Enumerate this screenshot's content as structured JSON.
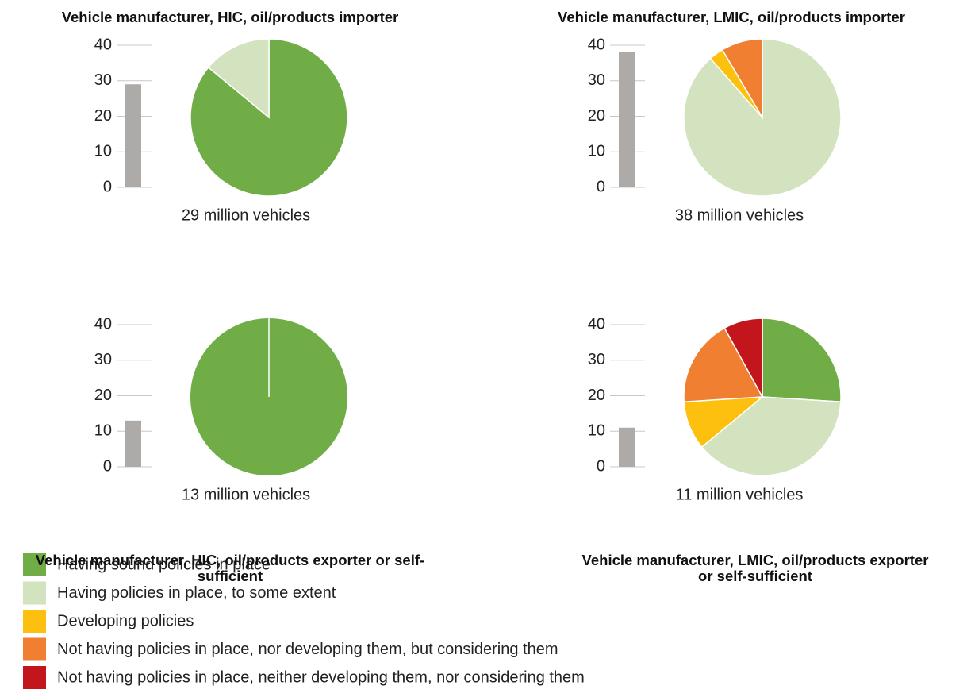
{
  "chart_data": [
    {
      "type": "bar_pie",
      "title": "Vehicle manufacturer, HIC, oil/products importer",
      "ylim": [
        0,
        40
      ],
      "yticks": [
        0,
        10,
        20,
        30,
        40
      ],
      "bar": {
        "values": [
          29
        ],
        "value_labels": [
          "29 million vehicles"
        ],
        "color": "#aeaaa8"
      },
      "pie": {
        "values": [
          86,
          14,
          0,
          0,
          0
        ]
      }
    },
    {
      "type": "bar_pie",
      "title": "Vehicle manufacturer, LMIC, oil/products importer",
      "ylim": [
        0,
        40
      ],
      "yticks": [
        0,
        10,
        20,
        30,
        40
      ],
      "bar": {
        "values": [
          38
        ],
        "value_labels": [
          "38 million vehicles"
        ],
        "color": "#aeaaa8"
      },
      "pie": {
        "values": [
          0,
          88.5,
          3,
          8.5,
          0
        ]
      }
    },
    {
      "type": "bar_pie",
      "title": "Vehicle manufacturer, HIC, oil/products exporter or self-sufficient",
      "ylim": [
        0,
        40
      ],
      "yticks": [
        0,
        10,
        20,
        30,
        40
      ],
      "bar": {
        "values": [
          13
        ],
        "value_labels": [
          "13 million vehicles"
        ],
        "color": "#aeaaa8"
      },
      "pie": {
        "values": [
          100,
          0,
          0,
          0,
          0
        ]
      }
    },
    {
      "type": "bar_pie",
      "title": "Vehicle manufacturer, LMIC, oil/products exporter or self-sufficient",
      "ylim": [
        0,
        40
      ],
      "yticks": [
        0,
        10,
        20,
        30,
        40
      ],
      "bar": {
        "values": [
          11
        ],
        "value_labels": [
          "11 million vehicles"
        ],
        "color": "#aeaaa8"
      },
      "pie": {
        "values": [
          26,
          38,
          10,
          18,
          8
        ]
      }
    }
  ],
  "legend": {
    "labels": [
      "Having sound policies in place",
      "Having policies in place, to some extent",
      "Developing policies",
      "Not having policies in place, nor developing them, but considering them",
      "Not having policies in place, neither developing them, nor considering them"
    ],
    "colors": [
      "#70ad47",
      "#d3e2bf",
      "#fec00f",
      "#f07f31",
      "#c3161c"
    ]
  }
}
